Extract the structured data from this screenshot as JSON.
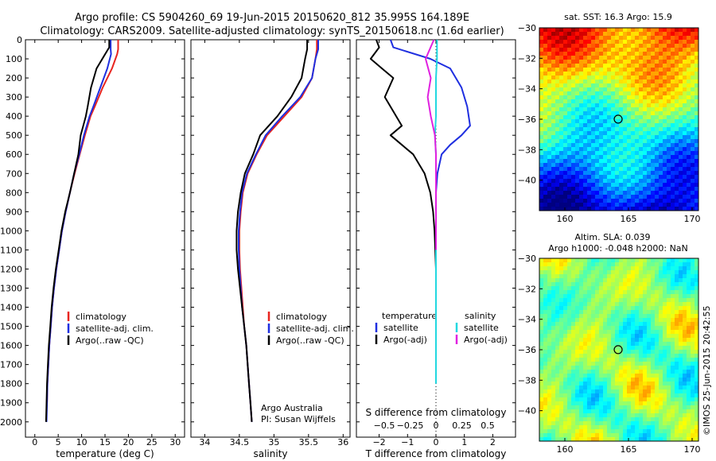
{
  "header": {
    "title_line1": "Argo profile: CS 5904260_69 19-Jun-2015 20150620_812 35.995S 164.189E",
    "title_line2": "Climatology: CARS2009. Satellite-adjusted climatology: synTS_20150618.nc (1.6d earlier)"
  },
  "watermark": "©IMOS 25-Jun-2015 20:42:55",
  "colors": {
    "climatology": "#e8251f",
    "satellite": "#1f2fe0",
    "argo": "#000000",
    "sat_salinity": "#22d8e0",
    "argo_adj_salinity": "#e020e0"
  },
  "chart_data": [
    {
      "type": "line",
      "panel": "temperature",
      "xlabel": "temperature (deg C)",
      "ylabel": "",
      "xlim": [
        -2,
        32
      ],
      "ylim": [
        2080,
        0
      ],
      "xticks": [
        0,
        5,
        10,
        15,
        20,
        25,
        30
      ],
      "yticks": [
        0,
        100,
        200,
        300,
        400,
        500,
        600,
        700,
        800,
        900,
        1000,
        1100,
        1200,
        1300,
        1400,
        1500,
        1600,
        1700,
        1800,
        1900,
        2000
      ],
      "legend": [
        "climatology",
        "satellite-adj. clim.",
        "Argo(..raw -QC)"
      ],
      "legend_position": "lower-right",
      "series": [
        {
          "name": "climatology",
          "color": "#e8251f",
          "x": [
            17.8,
            17.8,
            17.6,
            16.5,
            14.5,
            12.8,
            11.9,
            10.7,
            9.6,
            8.5,
            7.5,
            6.6,
            5.8,
            5.2,
            4.6,
            4.1,
            3.7,
            3.4,
            3.1,
            2.9,
            2.7,
            2.6
          ],
          "y": [
            0,
            50,
            75,
            150,
            250,
            350,
            400,
            500,
            600,
            700,
            800,
            900,
            1000,
            1100,
            1200,
            1300,
            1400,
            1500,
            1600,
            1700,
            1800,
            1900
          ]
        },
        {
          "name": "satellite-adj. clim.",
          "color": "#1f2fe0",
          "x": [
            16.2,
            16.2,
            16.3,
            15.5,
            14.0,
            12.5,
            11.7,
            10.5,
            9.5,
            8.4,
            7.5,
            6.6,
            5.8,
            5.2,
            4.6,
            4.1,
            3.7,
            3.4,
            3.1,
            2.9,
            2.7,
            2.6,
            2.5
          ],
          "y": [
            0,
            50,
            75,
            150,
            250,
            350,
            400,
            500,
            600,
            700,
            800,
            900,
            1000,
            1100,
            1200,
            1300,
            1400,
            1500,
            1600,
            1700,
            1800,
            1900,
            2000
          ]
        },
        {
          "name": "Argo(..raw -QC)",
          "color": "#000000",
          "x": [
            15.9,
            15.9,
            15.4,
            13.2,
            12.0,
            11.3,
            10.9,
            9.8,
            9.3,
            8.4,
            7.5,
            6.5,
            5.7,
            5.1,
            4.5,
            4.0,
            3.6,
            3.3,
            3.0,
            2.8,
            2.6,
            2.5,
            2.4
          ],
          "y": [
            0,
            40,
            60,
            150,
            250,
            350,
            400,
            500,
            600,
            700,
            800,
            900,
            1000,
            1100,
            1200,
            1300,
            1400,
            1500,
            1600,
            1700,
            1800,
            1900,
            2000
          ]
        }
      ]
    },
    {
      "type": "line",
      "panel": "salinity",
      "xlabel": "salinity",
      "ylabel": "",
      "xlim": [
        33.8,
        36.1
      ],
      "ylim": [
        2080,
        0
      ],
      "xticks": [
        34,
        34.5,
        35,
        35.5,
        36
      ],
      "legend": [
        "climatology",
        "satellite-adj. clim.",
        "Argo(..raw -QC)"
      ],
      "legend_position": "lower-right",
      "annotation_line1": "Argo Australia",
      "annotation_line2": "PI: Susan Wijffels",
      "series": [
        {
          "name": "climatology",
          "color": "#e8251f",
          "x": [
            35.62,
            35.62,
            35.6,
            35.55,
            35.4,
            35.15,
            34.9,
            34.75,
            34.62,
            34.55,
            34.52,
            34.5,
            34.5,
            34.51,
            34.53,
            34.55,
            34.57,
            34.6,
            34.62,
            34.64,
            34.66,
            34.68
          ],
          "y": [
            0,
            50,
            100,
            200,
            300,
            400,
            500,
            600,
            700,
            800,
            900,
            1000,
            1100,
            1200,
            1300,
            1400,
            1500,
            1600,
            1700,
            1800,
            1900,
            2000
          ]
        },
        {
          "name": "satellite-adj. clim.",
          "color": "#1f2fe0",
          "x": [
            35.64,
            35.64,
            35.6,
            35.55,
            35.38,
            35.12,
            34.88,
            34.74,
            34.61,
            34.54,
            34.51,
            34.49,
            34.49,
            34.5,
            34.52,
            34.54,
            34.57,
            34.6,
            34.62,
            34.64,
            34.66,
            34.68
          ],
          "y": [
            0,
            50,
            100,
            200,
            300,
            400,
            500,
            600,
            700,
            800,
            900,
            1000,
            1100,
            1200,
            1300,
            1400,
            1500,
            1600,
            1700,
            1800,
            1900,
            2000
          ]
        },
        {
          "name": "Argo(..raw -QC)",
          "color": "#000000",
          "x": [
            35.48,
            35.48,
            35.45,
            35.4,
            35.25,
            35.05,
            34.8,
            34.7,
            34.58,
            34.52,
            34.48,
            34.46,
            34.46,
            34.48,
            34.51,
            34.54,
            34.57,
            34.6,
            34.62,
            34.64,
            34.66,
            34.68
          ],
          "y": [
            0,
            50,
            100,
            200,
            300,
            400,
            500,
            600,
            700,
            800,
            900,
            1000,
            1100,
            1200,
            1300,
            1400,
            1500,
            1600,
            1700,
            1800,
            1900,
            2000
          ]
        }
      ]
    },
    {
      "type": "line",
      "panel": "difference",
      "xlabel": "T difference from climatology",
      "xlabel_top": "S difference from climatology",
      "ylabel": "",
      "xlim": [
        -2.8,
        2.8
      ],
      "ylim": [
        2080,
        0
      ],
      "xticks": [
        -2,
        -1,
        0,
        1,
        2
      ],
      "xticks_top": [
        -0.5,
        -0.25,
        0,
        0.25,
        0.5
      ],
      "legend_title_temperature": "temperature",
      "legend_title_salinity": "salinity",
      "legend": [
        "satellite",
        "Argo(-adj)",
        "satellite",
        "Argo(-adj)"
      ],
      "legend_position": "lower-center",
      "series": [
        {
          "name": "satellite",
          "color": "#1f2fe0",
          "x": [
            -1.6,
            -1.5,
            -0.2,
            0.5,
            0.9,
            1.1,
            1.2,
            0.9,
            0.5,
            0.2,
            0.05,
            0.0,
            0.0,
            0.0,
            0.0,
            0.0
          ],
          "y": [
            0,
            40,
            100,
            150,
            250,
            350,
            450,
            500,
            550,
            600,
            700,
            800,
            900,
            1000,
            1200,
            1400
          ]
        },
        {
          "name": "Argo(-adj)",
          "color": "#000000",
          "x": [
            -2.1,
            -2.0,
            -2.3,
            -1.9,
            -1.5,
            -1.8,
            -1.4,
            -1.2,
            -1.6,
            -1.2,
            -0.8,
            -0.4,
            -0.2,
            -0.1,
            -0.05,
            0.0
          ],
          "y": [
            0,
            40,
            100,
            150,
            200,
            300,
            400,
            450,
            500,
            550,
            600,
            700,
            800,
            900,
            1000,
            1200
          ]
        },
        {
          "name": "satellite",
          "color": "#22d8e0",
          "x": [
            0.01,
            0.01,
            0.0,
            0.0,
            0.0,
            -0.01,
            0.0,
            0.0,
            0.0,
            0.0,
            0.0,
            0.0,
            0.0
          ],
          "y": [
            0,
            100,
            200,
            300,
            400,
            500,
            600,
            800,
            1000,
            1200,
            1400,
            1600,
            1800
          ]
        },
        {
          "name": "Argo(-adj)",
          "color": "#e020e0",
          "x": [
            -0.02,
            -0.1,
            -0.05,
            -0.08,
            -0.05,
            -0.01,
            0.0,
            0.0,
            0.0,
            0.0
          ],
          "y": [
            0,
            100,
            200,
            300,
            400,
            500,
            600,
            800,
            1000,
            1100
          ]
        }
      ]
    },
    {
      "type": "heatmap",
      "panel": "sst-map",
      "title": "sat. SST: 16.3 Argo: 15.9",
      "xticks": [
        160,
        165,
        170
      ],
      "yticks": [
        -30,
        -32,
        -34,
        -36,
        -38,
        -40
      ],
      "xlim": [
        158,
        170.5
      ],
      "ylim": [
        -42,
        -30
      ],
      "marker": {
        "lon": 164.189,
        "lat": -35.995
      }
    },
    {
      "type": "heatmap",
      "panel": "sla-map",
      "title_line1": "Altim. SLA: 0.039",
      "title_line2": "Argo h1000: -0.048 h2000: NaN",
      "xticks": [
        160,
        165,
        170
      ],
      "yticks": [
        -30,
        -32,
        -34,
        -36,
        -38,
        -40
      ],
      "xlim": [
        158,
        170.5
      ],
      "ylim": [
        -42,
        -30
      ],
      "marker": {
        "lon": 164.189,
        "lat": -35.995
      }
    }
  ]
}
